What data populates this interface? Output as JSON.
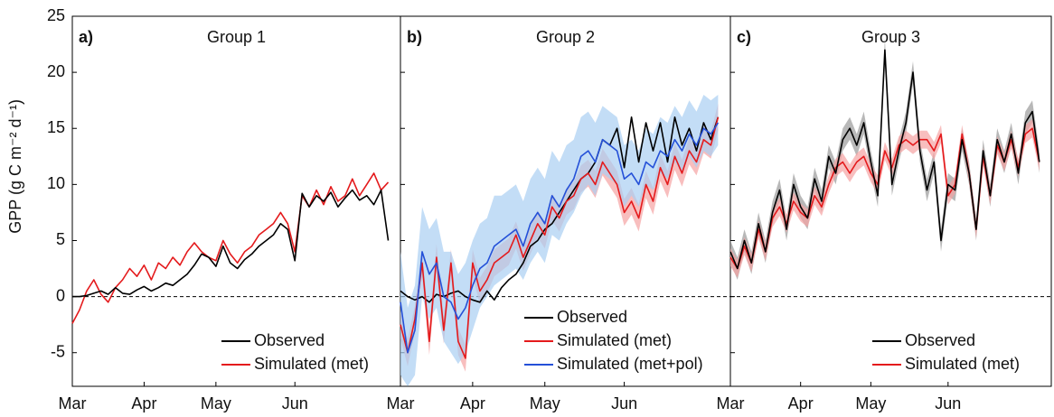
{
  "chart_data": [
    {
      "type": "line",
      "panel_label": "a)",
      "title": "Group 1",
      "ylabel": "GPP (g C m⁻² d⁻¹)",
      "categories": [
        "Mar",
        null,
        null,
        null,
        null,
        null,
        null,
        null,
        null,
        null,
        "Apr",
        null,
        null,
        null,
        null,
        null,
        null,
        null,
        null,
        null,
        "May",
        null,
        null,
        null,
        null,
        null,
        null,
        null,
        null,
        null,
        null,
        "Jun",
        null,
        null,
        null,
        null,
        null,
        null,
        null,
        null,
        null,
        null,
        null,
        null,
        null
      ],
      "ylim": [
        -8,
        25
      ],
      "yticks": [
        -5,
        0,
        5,
        10,
        15,
        20,
        25
      ],
      "zero_line": true,
      "legend": "lower right",
      "series": [
        {
          "name": "Observed",
          "color": "#000000",
          "values": [
            0,
            0,
            0.1,
            0.3,
            0.5,
            0.2,
            0.8,
            0.3,
            0.2,
            0.6,
            0.9,
            0.5,
            0.8,
            1.2,
            1.0,
            1.5,
            2.0,
            2.8,
            3.8,
            3.5,
            2.7,
            4.5,
            3.0,
            2.5,
            3.3,
            3.8,
            4.5,
            5.0,
            5.5,
            6.5,
            6.0,
            3.2,
            9.2,
            8.0,
            9.0,
            8.5,
            9.3,
            8.0,
            8.8,
            9.5,
            8.6,
            9.0,
            8.2,
            9.5,
            5.0
          ]
        },
        {
          "name": "Simulated (met)",
          "color": "#e41a1c",
          "values": [
            -2.4,
            -1.2,
            0.5,
            1.5,
            0.2,
            -0.5,
            0.8,
            1.5,
            2.5,
            1.8,
            2.8,
            1.5,
            3.0,
            2.5,
            3.5,
            2.8,
            4.0,
            4.8,
            4.0,
            3.5,
            3.2,
            5.0,
            3.8,
            3.0,
            4.0,
            4.5,
            5.5,
            6.0,
            6.5,
            7.5,
            6.5,
            4.0,
            9.0,
            8.0,
            9.5,
            8.2,
            9.8,
            8.5,
            9.0,
            10.5,
            9.0,
            10.0,
            11.0,
            9.5,
            10.2
          ]
        }
      ]
    },
    {
      "type": "line",
      "panel_label": "b)",
      "title": "Group 2",
      "categories": [
        "Mar",
        null,
        null,
        null,
        null,
        null,
        null,
        null,
        null,
        null,
        "Apr",
        null,
        null,
        null,
        null,
        null,
        null,
        null,
        null,
        null,
        "May",
        null,
        null,
        null,
        null,
        null,
        null,
        null,
        null,
        null,
        null,
        "Jun",
        null,
        null,
        null,
        null,
        null,
        null,
        null,
        null,
        null,
        null,
        null,
        null,
        null
      ],
      "ylim": [
        -8,
        25
      ],
      "yticks": [
        -5,
        0,
        5,
        10,
        15,
        20,
        25
      ],
      "zero_line": true,
      "legend": "lower right",
      "series": [
        {
          "name": "Observed",
          "color": "#000000",
          "values": [
            0.5,
            0,
            -0.3,
            0,
            -0.5,
            0.2,
            0,
            0.3,
            0.5,
            0,
            -0.3,
            -0.5,
            0.5,
            -0.3,
            0.8,
            1.5,
            2.0,
            3.0,
            4.5,
            5.0,
            6.0,
            6.5,
            7.5,
            8.5,
            9.5,
            10.5,
            11.0,
            12.0,
            14.0,
            13.5,
            15.0,
            11.5,
            16.0,
            12.0,
            15.5,
            13.0,
            15.5,
            12.0,
            16.0,
            13.5,
            15.0,
            13.0,
            15.5,
            14.0,
            16.0
          ]
        },
        {
          "name": "Simulated (met)",
          "color": "#e41a1c",
          "band_color": "#f5a3a3",
          "values": [
            -2.5,
            -5.0,
            -2.0,
            3.0,
            -4.0,
            3.5,
            -3.0,
            3.0,
            -4.0,
            -5.5,
            3.0,
            0.5,
            1.5,
            3.0,
            3.5,
            4.0,
            5.5,
            3.5,
            5.0,
            6.5,
            5.5,
            8.0,
            7.0,
            8.5,
            9.0,
            10.5,
            11.0,
            10.0,
            12.0,
            11.0,
            10.0,
            7.5,
            8.5,
            7.0,
            10.0,
            8.5,
            11.5,
            10.0,
            12.5,
            11.0,
            13.0,
            12.0,
            14.0,
            13.5,
            16.0
          ],
          "lower": [
            -3.7,
            -6.2,
            -3.2,
            1.8,
            -5.2,
            2.3,
            -4.2,
            1.8,
            -5.2,
            -6.7,
            1.8,
            -0.7,
            0.3,
            1.8,
            2.3,
            2.8,
            4.3,
            2.3,
            3.8,
            5.3,
            4.3,
            6.8,
            5.8,
            7.3,
            7.8,
            9.3,
            9.8,
            8.8,
            10.8,
            9.8,
            8.8,
            6.3,
            7.3,
            5.8,
            8.8,
            7.3,
            10.3,
            8.8,
            11.3,
            9.8,
            11.8,
            10.8,
            12.8,
            12.3,
            14.8
          ],
          "upper": [
            -1.3,
            -3.8,
            -0.8,
            4.2,
            -2.8,
            4.7,
            -1.8,
            4.2,
            -2.8,
            -4.3,
            4.2,
            1.7,
            2.7,
            4.2,
            4.7,
            5.2,
            6.7,
            4.7,
            6.2,
            7.7,
            6.7,
            9.2,
            8.2,
            9.7,
            10.2,
            11.7,
            12.2,
            11.2,
            13.2,
            12.2,
            11.2,
            8.7,
            9.7,
            8.2,
            11.2,
            9.7,
            12.7,
            11.2,
            13.7,
            12.2,
            14.2,
            13.2,
            15.2,
            14.7,
            17.2
          ]
        },
        {
          "name": "Simulated (met+pol)",
          "color": "#2450d8",
          "band_color": "#a9cff2",
          "values": [
            -0.5,
            -5.0,
            -3.0,
            4.0,
            2.0,
            3.0,
            0,
            -0.5,
            -2.0,
            -1.0,
            1.0,
            2.5,
            3.0,
            4.5,
            5.0,
            5.5,
            6.0,
            4.5,
            6.5,
            7.5,
            6.5,
            9.0,
            8.0,
            9.5,
            10.5,
            12.5,
            13.0,
            12.0,
            14.0,
            13.5,
            13.0,
            10.5,
            11.0,
            10.0,
            12.0,
            11.5,
            13.0,
            12.5,
            14.0,
            13.0,
            14.5,
            13.5,
            15.0,
            14.5,
            15.5
          ],
          "lower": [
            -7,
            -8,
            -7,
            0,
            -2,
            -1,
            -4,
            -5,
            -6,
            -5,
            -3,
            -1,
            0,
            1,
            1.5,
            2,
            2.5,
            1.5,
            3,
            4,
            3,
            5.5,
            5,
            6.5,
            7.5,
            9,
            10,
            9,
            11,
            10.5,
            10,
            8,
            9,
            8,
            10,
            9.5,
            11,
            10.5,
            12,
            11,
            12.5,
            11.5,
            13,
            12.5,
            13.5
          ],
          "upper": [
            4,
            -1,
            1,
            8,
            6,
            7,
            4,
            4,
            2,
            3,
            5,
            6.5,
            7,
            9,
            9,
            9.5,
            10,
            8.5,
            10.5,
            11.5,
            10.5,
            13,
            12,
            13.5,
            14,
            16,
            16.5,
            15.5,
            17,
            16.5,
            16,
            13.5,
            14,
            13,
            15,
            14.5,
            16,
            15.5,
            17,
            16,
            17.5,
            16.5,
            18,
            17.5,
            18
          ]
        }
      ]
    },
    {
      "type": "line",
      "panel_label": "c)",
      "title": "Group 3",
      "categories": [
        "Mar",
        null,
        null,
        null,
        null,
        null,
        null,
        null,
        null,
        null,
        "Apr",
        null,
        null,
        null,
        null,
        null,
        null,
        null,
        null,
        null,
        "May",
        null,
        null,
        null,
        null,
        null,
        null,
        null,
        null,
        null,
        null,
        "Jun",
        null,
        null,
        null,
        null,
        null,
        null,
        null,
        null,
        null,
        null,
        null,
        null,
        null
      ],
      "ylim": [
        -8,
        25
      ],
      "yticks": [
        -5,
        0,
        5,
        10,
        15,
        20,
        25
      ],
      "zero_line": true,
      "legend": "lower right",
      "series": [
        {
          "name": "Observed",
          "color": "#000000",
          "band_color": "#9a9a9a",
          "values": [
            4.0,
            2.5,
            5.0,
            3.0,
            6.5,
            4.0,
            7.5,
            9.5,
            6.0,
            10.0,
            8.0,
            7.0,
            10.5,
            8.5,
            12.5,
            11.0,
            14.0,
            15.0,
            13.5,
            15.5,
            12.0,
            9.0,
            22.0,
            10.0,
            13.0,
            15.5,
            20.0,
            13.0,
            9.5,
            12.0,
            5.0,
            10.0,
            9.5,
            14.0,
            11.0,
            6.0,
            13.0,
            9.0,
            14.0,
            12.0,
            14.5,
            11.0,
            15.5,
            16.5,
            12.0
          ],
          "lower": [
            3,
            1.5,
            4,
            2,
            5.5,
            3,
            6.5,
            8.5,
            5,
            9,
            7,
            6,
            9.5,
            7.5,
            11.5,
            10,
            13,
            14,
            12.5,
            14.5,
            11,
            8,
            21,
            9,
            12,
            14.5,
            19,
            12,
            8.5,
            11,
            4,
            9,
            8.5,
            13,
            10,
            5,
            12,
            8,
            13,
            11,
            13.5,
            10,
            14.5,
            15.5,
            11
          ],
          "upper": [
            5,
            3.5,
            6,
            4,
            7.5,
            5,
            8.5,
            10.5,
            7,
            11,
            9,
            8,
            11.5,
            9.5,
            13.5,
            12,
            15,
            16,
            14.5,
            16.5,
            13,
            10,
            23,
            11,
            14,
            16.5,
            21,
            14,
            10.5,
            13,
            6,
            11,
            10.5,
            15,
            12,
            7,
            14,
            10,
            15,
            13,
            15.5,
            12,
            16.5,
            17.5,
            13
          ]
        },
        {
          "name": "Simulated (met)",
          "color": "#e41a1c",
          "band_color": "#f5a3a3",
          "values": [
            3.5,
            2.5,
            4.5,
            3.0,
            6.0,
            4.0,
            7.0,
            8.0,
            6.5,
            8.5,
            7.5,
            7.0,
            9.0,
            8.0,
            10.0,
            11.5,
            12.0,
            11.0,
            12.0,
            12.5,
            11.0,
            10.0,
            13.0,
            11.5,
            13.5,
            14.0,
            13.5,
            14.0,
            14.0,
            13.0,
            14.5,
            9.0,
            10.0,
            14.5,
            11.0,
            6.0,
            12.5,
            9.0,
            13.5,
            12.0,
            14.0,
            11.5,
            14.5,
            15.0,
            12.0
          ],
          "lower": [
            2.7,
            1.7,
            3.7,
            2.2,
            5.2,
            3.2,
            6.2,
            7.2,
            5.7,
            7.7,
            6.7,
            6.2,
            8.2,
            7.2,
            9.2,
            10.7,
            11.2,
            10.2,
            11.2,
            11.7,
            10.2,
            9.2,
            12.2,
            10.7,
            12.7,
            13.2,
            12.7,
            13.2,
            13.2,
            12.2,
            13.7,
            8.2,
            9.2,
            13.7,
            10.2,
            5.2,
            11.7,
            8.2,
            12.7,
            11.2,
            13.2,
            10.7,
            13.7,
            14.2,
            11.2
          ],
          "upper": [
            4.3,
            3.3,
            5.3,
            3.8,
            6.8,
            4.8,
            7.8,
            8.8,
            7.3,
            9.3,
            8.3,
            7.8,
            9.8,
            8.8,
            10.8,
            12.3,
            12.8,
            11.8,
            12.8,
            13.3,
            11.8,
            10.8,
            13.8,
            12.3,
            14.3,
            14.8,
            14.3,
            14.8,
            14.8,
            13.8,
            15.3,
            9.8,
            10.8,
            15.3,
            11.8,
            6.8,
            13.3,
            9.8,
            14.3,
            12.8,
            14.8,
            12.3,
            15.3,
            15.8,
            12.8
          ]
        }
      ]
    }
  ]
}
